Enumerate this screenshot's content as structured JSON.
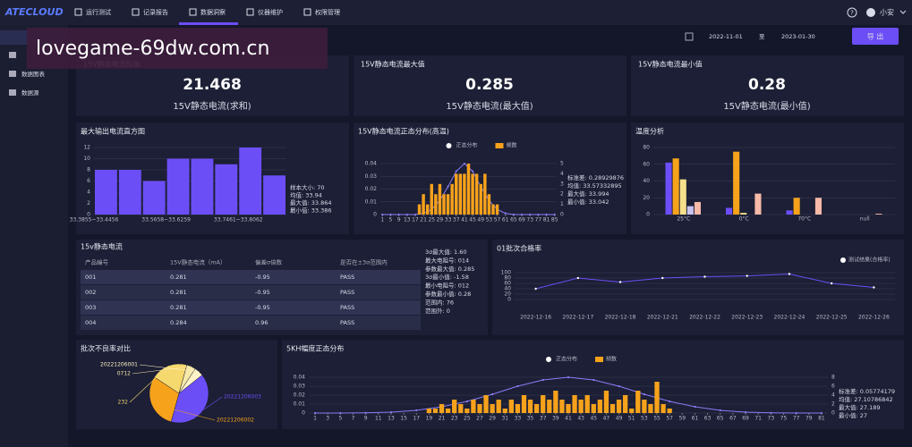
{
  "nav": {
    "logo": "ATECLOUD",
    "items": [
      "运行测试",
      "记录报告",
      "数据洞察",
      "仪器维护",
      "权限管理"
    ],
    "help": "?",
    "user": "小安"
  },
  "watermark": "lovegame-69dw.com.cn",
  "sidebar": [
    "数据图表",
    "数据源"
  ],
  "toolbar": {
    "start": "2022-11-01",
    "sep": "至",
    "end": "2023-01-30",
    "export": "导 出"
  },
  "cards": [
    {
      "title": "15V静态电流和值",
      "value": 21.468,
      "label": "15V静态电流(求和)"
    },
    {
      "title": "15V静态电流最大值",
      "value": 0.285,
      "label": "15V静态电流(最大值)"
    },
    {
      "title": "15V静态电流最小值",
      "value": 0.28,
      "label": "15V静态电流(最小值)"
    }
  ],
  "histogram": {
    "type": "bar",
    "title": "最大输出电流直方图",
    "categories": [
      "33.3855~33.4456",
      null,
      null,
      "33.5658~33.6259",
      null,
      null,
      "33.7461~33.8062",
      null
    ],
    "values": [
      8,
      8,
      6,
      10,
      10,
      9,
      12,
      7
    ],
    "color": "#6c4ef7",
    "ylim": [
      0,
      12
    ],
    "yticks": [
      0,
      2,
      4,
      6,
      8,
      10,
      12
    ],
    "stats": [
      "样本大小: 70",
      "均值: 33.94",
      "最大值: 33.864",
      "最小值: 33.386"
    ]
  },
  "normal_high": {
    "type": "combo",
    "title": "15V静态电流正态分布(高温)",
    "series": [
      {
        "name": "正态分布",
        "type": "line",
        "color": "#8a7cf8",
        "x": [
          1,
          5,
          9,
          13,
          17,
          21,
          25,
          29,
          33,
          37,
          41,
          45,
          49,
          53,
          57,
          61,
          65,
          69,
          73,
          77,
          81,
          85
        ],
        "values": [
          0,
          0,
          0,
          0,
          0,
          0.001,
          0.004,
          0.011,
          0.022,
          0.034,
          0.04,
          0.034,
          0.022,
          0.011,
          0.004,
          0.001,
          0,
          0,
          0,
          0,
          0,
          0
        ]
      },
      {
        "name": "频数",
        "type": "bar",
        "axis": "y2",
        "color": "#f7a21b",
        "x": [
          19,
          21,
          23,
          25,
          27,
          29,
          31,
          33,
          35,
          37,
          39,
          41,
          43,
          45,
          47,
          49,
          51,
          53,
          55,
          57
        ],
        "values": [
          1,
          2,
          1,
          3,
          2,
          3,
          2,
          2,
          3,
          4,
          4,
          4,
          5,
          4,
          4,
          3,
          4,
          2,
          1,
          1
        ]
      }
    ],
    "xlim": [
      0,
      86
    ],
    "xticks": [
      1,
      5,
      9,
      13,
      17,
      21,
      25,
      29,
      33,
      37,
      41,
      45,
      49,
      53,
      57,
      61,
      65,
      69,
      73,
      77,
      81,
      85
    ],
    "ylim": [
      0,
      0.04
    ],
    "yticks": [
      0,
      0.01,
      0.02,
      0.03,
      0.04
    ],
    "y2lim": [
      0,
      5
    ],
    "y2ticks": [
      0,
      1,
      2,
      3,
      4,
      5
    ],
    "stats": [
      "标准差: 0.28929876",
      "均值: 33.57332895",
      "最大值: 33.994",
      "最小值: 33.042"
    ]
  },
  "temperature": {
    "type": "grouped_bar",
    "title": "温度分析",
    "categories": [
      "25°C",
      "0°C",
      "70°C",
      "null"
    ],
    "series": [
      {
        "color": "#6c4ef7",
        "values": [
          62,
          8,
          5,
          0
        ]
      },
      {
        "color": "#f7a21b",
        "values": [
          67,
          75,
          20,
          0
        ]
      },
      {
        "color": "#f5e08a",
        "values": [
          42,
          2,
          0,
          0
        ]
      },
      {
        "color": "#c9c3ef",
        "values": [
          10,
          0,
          0,
          0
        ]
      },
      {
        "color": "#f7b9a8",
        "values": [
          15,
          25,
          20,
          1
        ]
      }
    ],
    "ylim": [
      0,
      80
    ],
    "yticks": [
      0,
      20,
      40,
      60,
      80
    ]
  },
  "table": {
    "title": "15v静态电流",
    "columns": [
      "产品编号",
      "15V静态电流（mA）",
      "偏差σ倍数",
      "是否在±3σ范围内"
    ],
    "rows": [
      [
        "001",
        0.281,
        -0.95,
        "PASS"
      ],
      [
        "002",
        0.281,
        -0.95,
        "PASS"
      ],
      [
        "003",
        0.281,
        -0.95,
        "PASS"
      ],
      [
        "004",
        0.284,
        0.96,
        "PASS"
      ]
    ],
    "stats": [
      "3σ最大值: 1.60",
      "最大电阻号: 014",
      "参数最大值: 0.285",
      "3σ最小值: -1.58",
      "最小电阻号: 012",
      "参数最小值: 0.28",
      "范围内: 76",
      "范围外: 0"
    ]
  },
  "pass_rate": {
    "type": "line",
    "title": "01批次合格率",
    "categories": [
      "2022-12-16",
      "2022-12-17",
      "2022-12-18",
      "2022-12-21",
      "2022-12-22",
      "2022-12-23",
      "2022-12-24",
      "2022-12-25",
      "2022-12-26"
    ],
    "series": [
      {
        "name": "测试结果(合格率)",
        "color": "#6c4ef7",
        "values": [
          40,
          80,
          65,
          80,
          85,
          88,
          95,
          60,
          45
        ]
      }
    ],
    "ylim": [
      0,
      100
    ],
    "yticks": [
      0,
      20,
      40,
      60,
      80,
      100
    ]
  },
  "defect": {
    "type": "pie",
    "title": "批次不良率对比",
    "categories": [
      "20221206003",
      "20221206002",
      "232",
      "0712",
      "20221206001"
    ],
    "values": [
      40,
      30,
      20,
      5,
      5
    ],
    "colors": [
      "#6c4ef7",
      "#f7a21b",
      "#f5d86e",
      "#f7e9a8",
      "#fff3c7"
    ]
  },
  "normal_5kh": {
    "type": "combo",
    "title": "5KH幅度正态分布",
    "series": [
      {
        "name": "正态分布",
        "type": "line",
        "color": "#8a7cf8",
        "x": [
          1,
          5,
          9,
          13,
          17,
          21,
          25,
          29,
          33,
          37,
          41,
          45,
          49,
          53,
          57,
          61,
          65,
          69,
          73,
          77,
          81
        ],
        "values": [
          0,
          0,
          0.0002,
          0.001,
          0.003,
          0.007,
          0.013,
          0.021,
          0.03,
          0.037,
          0.04,
          0.037,
          0.03,
          0.021,
          0.013,
          0.007,
          0.003,
          0.001,
          0.0002,
          0,
          0
        ]
      },
      {
        "name": "频数",
        "type": "bar",
        "axis": "y2",
        "color": "#f7a21b",
        "x": [
          19,
          20,
          21,
          22,
          23,
          24,
          25,
          26,
          27,
          28,
          29,
          30,
          31,
          32,
          33,
          34,
          35,
          36,
          37,
          38,
          39,
          40,
          41,
          42,
          43,
          44,
          45,
          46,
          47,
          48,
          49,
          50,
          51,
          52,
          53,
          54,
          55,
          56,
          57
        ],
        "values": [
          1,
          1,
          2,
          1,
          3,
          2,
          1,
          3,
          2,
          4,
          2,
          3,
          1,
          3,
          2,
          4,
          3,
          2,
          4,
          3,
          5,
          3,
          2,
          4,
          3,
          4,
          2,
          3,
          5,
          2,
          3,
          4,
          1,
          5,
          3,
          2,
          7,
          2,
          1
        ]
      }
    ],
    "xlim": [
      0,
      82
    ],
    "xticks": [
      1,
      3,
      5,
      7,
      9,
      11,
      13,
      15,
      17,
      19,
      21,
      23,
      25,
      27,
      29,
      31,
      33,
      35,
      37,
      39,
      41,
      43,
      45,
      47,
      49,
      51,
      53,
      55,
      57,
      59,
      61,
      63,
      65,
      67,
      69,
      71,
      73,
      75,
      77,
      79,
      81
    ],
    "ylim": [
      0,
      0.04
    ],
    "yticks": [
      0,
      0.01,
      0.02,
      0.03,
      0.04
    ],
    "y2lim": [
      0,
      8
    ],
    "y2ticks": [
      0,
      2,
      4,
      6,
      8
    ],
    "stats": [
      "标准差: 0.05774179",
      "均值: 27.10786842",
      "最大值: 27.189",
      "最小值: 27"
    ]
  }
}
